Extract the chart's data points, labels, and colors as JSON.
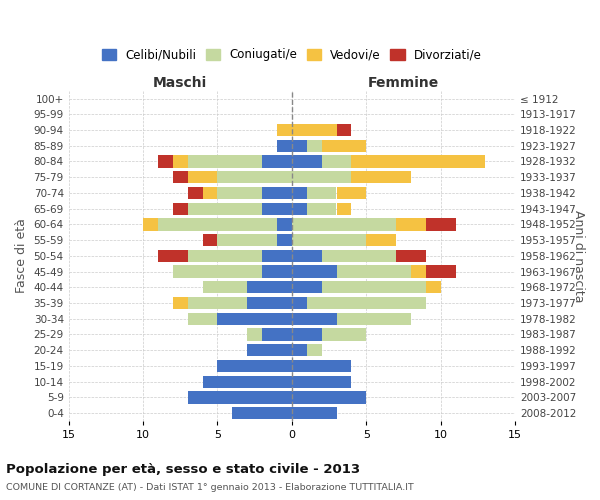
{
  "age_groups": [
    "0-4",
    "5-9",
    "10-14",
    "15-19",
    "20-24",
    "25-29",
    "30-34",
    "35-39",
    "40-44",
    "45-49",
    "50-54",
    "55-59",
    "60-64",
    "65-69",
    "70-74",
    "75-79",
    "80-84",
    "85-89",
    "90-94",
    "95-99",
    "100+"
  ],
  "birth_years": [
    "2008-2012",
    "2003-2007",
    "1998-2002",
    "1993-1997",
    "1988-1992",
    "1983-1987",
    "1978-1982",
    "1973-1977",
    "1968-1972",
    "1963-1967",
    "1958-1962",
    "1953-1957",
    "1948-1952",
    "1943-1947",
    "1938-1942",
    "1933-1937",
    "1928-1932",
    "1923-1927",
    "1918-1922",
    "1913-1917",
    "≤ 1912"
  ],
  "male_celibi": [
    4,
    7,
    6,
    5,
    3,
    2,
    5,
    3,
    3,
    2,
    2,
    1,
    1,
    2,
    2,
    0,
    2,
    1,
    0,
    0,
    0
  ],
  "male_coniugati": [
    0,
    0,
    0,
    0,
    0,
    1,
    2,
    4,
    3,
    6,
    5,
    4,
    8,
    5,
    3,
    5,
    5,
    0,
    0,
    0,
    0
  ],
  "male_vedovi": [
    0,
    0,
    0,
    0,
    0,
    0,
    0,
    1,
    0,
    0,
    0,
    0,
    1,
    0,
    1,
    2,
    1,
    0,
    1,
    0,
    0
  ],
  "male_divorziati": [
    0,
    0,
    0,
    0,
    0,
    0,
    0,
    0,
    0,
    0,
    2,
    1,
    0,
    1,
    1,
    1,
    1,
    0,
    0,
    0,
    0
  ],
  "female_celibi": [
    3,
    5,
    4,
    4,
    1,
    2,
    3,
    1,
    2,
    3,
    2,
    0,
    0,
    1,
    1,
    0,
    2,
    1,
    0,
    0,
    0
  ],
  "female_coniugati": [
    0,
    0,
    0,
    0,
    1,
    3,
    5,
    8,
    7,
    5,
    5,
    5,
    7,
    2,
    2,
    4,
    2,
    1,
    0,
    0,
    0
  ],
  "female_vedovi": [
    0,
    0,
    0,
    0,
    0,
    0,
    0,
    0,
    1,
    1,
    0,
    2,
    2,
    1,
    2,
    4,
    9,
    3,
    3,
    0,
    0
  ],
  "female_divorziati": [
    0,
    0,
    0,
    0,
    0,
    0,
    0,
    0,
    0,
    2,
    2,
    0,
    2,
    0,
    0,
    0,
    0,
    0,
    1,
    0,
    0
  ],
  "colors": {
    "celibi": "#4472c4",
    "coniugati": "#c5d9a0",
    "vedovi": "#f5c242",
    "divorziati": "#c0322a"
  },
  "title": "Popolazione per età, sesso e stato civile - 2013",
  "subtitle": "COMUNE DI CORTANZE (AT) - Dati ISTAT 1° gennaio 2013 - Elaborazione TUTTITALIA.IT",
  "label_maschi": "Maschi",
  "label_femmine": "Femmine",
  "ylabel_left": "Fasce di età",
  "ylabel_right": "Anni di nascita",
  "xlim": 15,
  "background_color": "#ffffff",
  "grid_color": "#cccccc"
}
